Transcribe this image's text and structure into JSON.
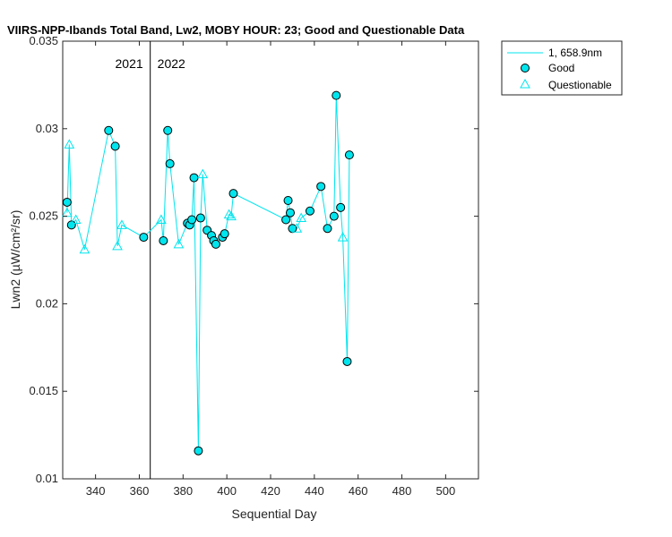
{
  "chart_data": {
    "type": "line",
    "title": "VIIRS-NPP-Ibands Total Band, Lw2, MOBY HOUR: 23;  Good and Questionable Data",
    "xlabel": "Sequential Day",
    "ylabel": "Lwn2 (µW/cm²/sr)",
    "xlim": [
      325,
      515
    ],
    "ylim": [
      0.01,
      0.035
    ],
    "xticks": [
      340,
      360,
      380,
      400,
      420,
      440,
      460,
      480,
      500
    ],
    "yticks": [
      0.01,
      0.015,
      0.02,
      0.025,
      0.03,
      0.035
    ],
    "ytick_labels": [
      "0.01",
      "0.015",
      "0.02",
      "0.025",
      "0.03",
      "0.035"
    ],
    "grid": false,
    "legend_position": "outside-top-right",
    "colors": {
      "series": "#00e5ee",
      "good_fill": "#00e5ee",
      "marker_edge": "#000000",
      "divider": "#000000"
    },
    "year_divider": {
      "x": 365,
      "left_label": "2021",
      "right_label": "2022"
    },
    "series": [
      {
        "name": "1, 658.9nm",
        "points": [
          {
            "x": 327,
            "y": 0.0258,
            "q": "good"
          },
          {
            "x": 327,
            "y": 0.0252,
            "q": "questionable"
          },
          {
            "x": 328,
            "y": 0.0291,
            "q": "questionable"
          },
          {
            "x": 329,
            "y": 0.0245,
            "q": "good"
          },
          {
            "x": 331,
            "y": 0.0248,
            "q": "questionable"
          },
          {
            "x": 335,
            "y": 0.0231,
            "q": "questionable"
          },
          {
            "x": 346,
            "y": 0.0299,
            "q": "good"
          },
          {
            "x": 349,
            "y": 0.029,
            "q": "good"
          },
          {
            "x": 350,
            "y": 0.0233,
            "q": "questionable"
          },
          {
            "x": 352,
            "y": 0.0245,
            "q": "questionable"
          },
          {
            "x": 362,
            "y": 0.0238,
            "q": "good"
          },
          {
            "x": 370,
            "y": 0.0248,
            "q": "questionable"
          },
          {
            "x": 371,
            "y": 0.0236,
            "q": "good"
          },
          {
            "x": 373,
            "y": 0.0299,
            "q": "good"
          },
          {
            "x": 374,
            "y": 0.028,
            "q": "good"
          },
          {
            "x": 378,
            "y": 0.0234,
            "q": "questionable"
          },
          {
            "x": 382,
            "y": 0.0246,
            "q": "good"
          },
          {
            "x": 383,
            "y": 0.0245,
            "q": "good"
          },
          {
            "x": 384,
            "y": 0.0248,
            "q": "good"
          },
          {
            "x": 385,
            "y": 0.0272,
            "q": "good"
          },
          {
            "x": 387,
            "y": 0.0116,
            "q": "good"
          },
          {
            "x": 388,
            "y": 0.0249,
            "q": "good"
          },
          {
            "x": 389,
            "y": 0.0274,
            "q": "questionable"
          },
          {
            "x": 391,
            "y": 0.0242,
            "q": "good"
          },
          {
            "x": 393,
            "y": 0.0239,
            "q": "good"
          },
          {
            "x": 394,
            "y": 0.0236,
            "q": "good"
          },
          {
            "x": 395,
            "y": 0.0234,
            "q": "good"
          },
          {
            "x": 398,
            "y": 0.0238,
            "q": "good"
          },
          {
            "x": 399,
            "y": 0.024,
            "q": "good"
          },
          {
            "x": 401,
            "y": 0.0251,
            "q": "questionable"
          },
          {
            "x": 402,
            "y": 0.025,
            "q": "questionable"
          },
          {
            "x": 403,
            "y": 0.0263,
            "q": "good"
          },
          {
            "x": 427,
            "y": 0.0248,
            "q": "good"
          },
          {
            "x": 428,
            "y": 0.0259,
            "q": "good"
          },
          {
            "x": 429,
            "y": 0.0252,
            "q": "good"
          },
          {
            "x": 430,
            "y": 0.0243,
            "q": "good"
          },
          {
            "x": 432,
            "y": 0.0243,
            "q": "questionable"
          },
          {
            "x": 434,
            "y": 0.0249,
            "q": "questionable"
          },
          {
            "x": 438,
            "y": 0.0253,
            "q": "good"
          },
          {
            "x": 443,
            "y": 0.0267,
            "q": "good"
          },
          {
            "x": 446,
            "y": 0.0243,
            "q": "good"
          },
          {
            "x": 449,
            "y": 0.025,
            "q": "good"
          },
          {
            "x": 450,
            "y": 0.0319,
            "q": "good"
          },
          {
            "x": 452,
            "y": 0.0255,
            "q": "good"
          },
          {
            "x": 453,
            "y": 0.0238,
            "q": "questionable"
          },
          {
            "x": 455,
            "y": 0.0167,
            "q": "good"
          },
          {
            "x": 456,
            "y": 0.0285,
            "q": "good"
          }
        ]
      }
    ],
    "legend": [
      {
        "label": "1, 658.9nm",
        "kind": "line"
      },
      {
        "label": "Good",
        "kind": "circle"
      },
      {
        "label": "Questionable",
        "kind": "triangle"
      }
    ]
  }
}
